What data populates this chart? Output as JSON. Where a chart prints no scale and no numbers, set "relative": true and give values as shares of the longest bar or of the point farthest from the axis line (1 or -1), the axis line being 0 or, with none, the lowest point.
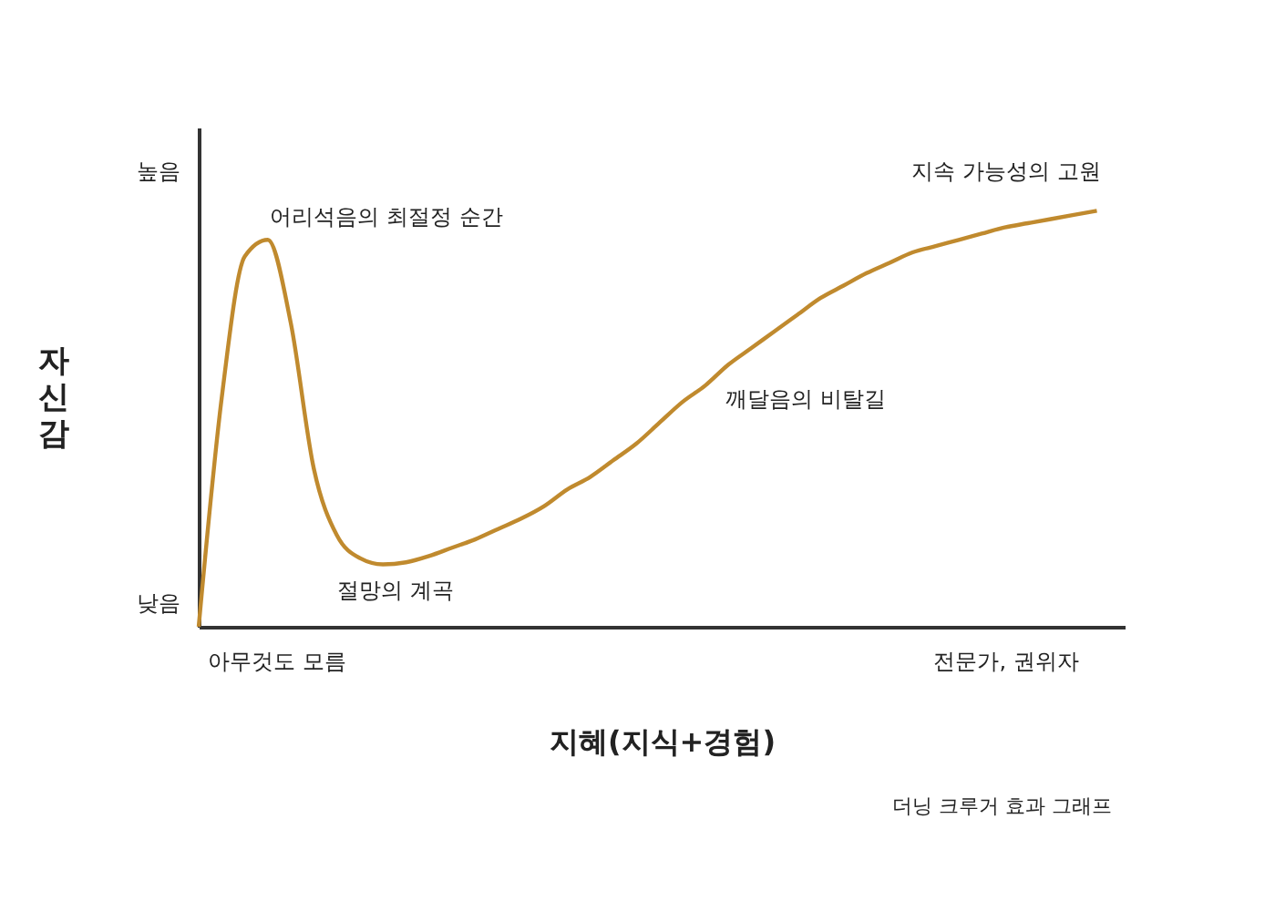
{
  "chart_data": {
    "type": "line",
    "relative": true,
    "xlabel": "지혜(지식+경험)",
    "ylabel": "자신감",
    "categories": [
      null,
      null,
      null,
      null,
      null,
      null,
      null,
      null,
      null,
      null,
      null,
      null,
      null,
      null,
      null,
      null,
      null,
      null,
      null,
      null,
      null,
      null,
      null,
      null,
      null,
      null,
      null,
      null,
      null,
      null,
      null,
      null,
      null,
      null,
      null,
      null,
      null,
      null,
      null,
      null
    ],
    "series": [
      {
        "color": "#c08a2e",
        "values": [
          0,
          0.55,
          0.89,
          0.93,
          0.73,
          0.38,
          0.22,
          0.165,
          0.15,
          0.155,
          0.17,
          0.19,
          0.21,
          0.235,
          0.26,
          0.29,
          0.33,
          0.36,
          0.4,
          0.44,
          0.49,
          0.54,
          0.58,
          0.63,
          0.67,
          0.71,
          0.75,
          0.79,
          0.82,
          0.85,
          0.875,
          0.9,
          0.915,
          0.93,
          0.945,
          0.96,
          0.97,
          0.98,
          0.99,
          1.0
        ]
      }
    ],
    "annotations": [
      "어리석음의 최절정 순간",
      "절망의 계곡",
      "깨달음의 비탈길",
      "지속 가능성의 고원",
      "높음",
      "낮음",
      "아무것도 모름",
      "전문가, 권위자",
      "더닝 크루거 효과 그래프"
    ],
    "grid": false,
    "legend": false,
    "marker": "none",
    "line_style": "solid"
  }
}
